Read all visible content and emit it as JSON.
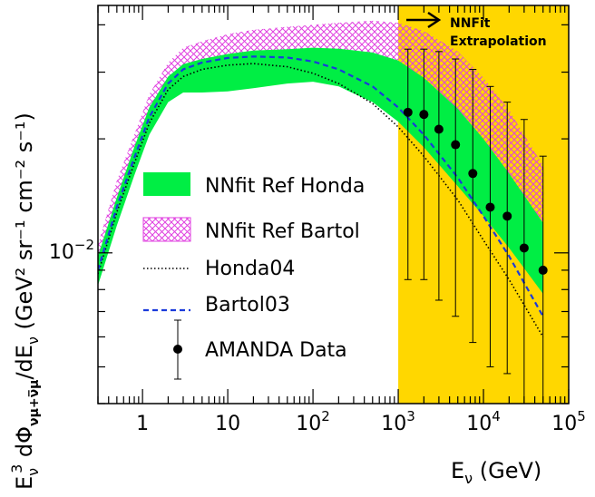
{
  "chart_data": {
    "type": "line",
    "title": "",
    "xlabel": "E_ν (GeV)",
    "ylabel": "E_ν³ dΦ_νμ+ν̅μ / dE_ν (GeV² sr⁻¹ cm⁻² s⁻¹)",
    "x_scale": "log",
    "y_scale": "log",
    "xlim": [
      0.3,
      100000
    ],
    "ylim": [
      0.004,
      0.045
    ],
    "x_ticks": [
      {
        "value": 1,
        "label": "1"
      },
      {
        "value": 10,
        "label": "10"
      },
      {
        "value": 100,
        "label": "10",
        "exp": "2"
      },
      {
        "value": 1000,
        "label": "10",
        "exp": "3"
      },
      {
        "value": 10000,
        "label": "10",
        "exp": "4"
      },
      {
        "value": 100000,
        "label": "10",
        "exp": "5"
      }
    ],
    "y_ticks": [
      {
        "value": 0.01,
        "label": "10",
        "exp": "−2"
      }
    ],
    "x_unit_label": "E",
    "x_unit_sub": "ν",
    "x_unit_rest": " (GeV)",
    "y_title": {
      "e": "E",
      "e_sub": "ν",
      "e_sup": "3",
      "dphi": " dΦ",
      "dphi_sub": "νμ+ν̅μ",
      "de": "/dE",
      "de_sub": "ν",
      "units": " (GeV² sr⁻¹ cm⁻² s⁻¹)"
    },
    "extrapolation_region": {
      "x_from": 1000,
      "x_to": 100000,
      "color": "#ffd700"
    },
    "annotation": {
      "line1": "NNFit",
      "line2": "Extrapolation"
    },
    "grid": false,
    "legend_position": "left-center",
    "series": [
      {
        "name": "NNfit Ref Honda",
        "style": "band",
        "color": "#00ee44",
        "x": [
          0.3,
          0.5,
          0.8,
          1.2,
          2,
          3,
          5,
          10,
          20,
          50,
          100,
          200,
          500,
          1000,
          2000,
          5000,
          10000,
          20000,
          50000
        ],
        "lower": [
          0.0082,
          0.0118,
          0.016,
          0.0205,
          0.025,
          0.0265,
          0.0265,
          0.0267,
          0.0272,
          0.028,
          0.0283,
          0.0275,
          0.025,
          0.0222,
          0.019,
          0.015,
          0.0125,
          0.0103,
          0.0078
        ],
        "upper": [
          0.0098,
          0.014,
          0.019,
          0.0242,
          0.0292,
          0.0315,
          0.0325,
          0.0335,
          0.0342,
          0.0345,
          0.0348,
          0.0346,
          0.0338,
          0.0322,
          0.029,
          0.024,
          0.02,
          0.0162,
          0.012
        ]
      },
      {
        "name": "NNfit Ref Bartol",
        "style": "hatched-band",
        "color": "#e040e0",
        "x": [
          0.3,
          0.5,
          0.8,
          1.2,
          2,
          3,
          5,
          10,
          20,
          50,
          100,
          200,
          500,
          1000,
          2000,
          5000,
          10000,
          20000,
          50000
        ],
        "lower": [
          0.0085,
          0.0125,
          0.0168,
          0.0215,
          0.0265,
          0.029,
          0.0305,
          0.0318,
          0.0325,
          0.033,
          0.033,
          0.0322,
          0.03,
          0.0272,
          0.0238,
          0.019,
          0.0158,
          0.0128,
          0.0095
        ],
        "upper": [
          0.0105,
          0.0155,
          0.0205,
          0.0262,
          0.0318,
          0.0348,
          0.0362,
          0.0378,
          0.0388,
          0.0395,
          0.04,
          0.0405,
          0.041,
          0.0405,
          0.0385,
          0.034,
          0.029,
          0.0238,
          0.017
        ]
      },
      {
        "name": "Honda04",
        "style": "dotted",
        "color": "#000000",
        "x": [
          0.3,
          0.5,
          0.8,
          1.2,
          2,
          3,
          5,
          10,
          20,
          50,
          100,
          200,
          500,
          1000,
          2000,
          5000,
          10000,
          20000,
          50000
        ],
        "y": [
          0.0088,
          0.0128,
          0.0172,
          0.022,
          0.027,
          0.0292,
          0.0305,
          0.0313,
          0.0316,
          0.031,
          0.0298,
          0.028,
          0.0248,
          0.0215,
          0.018,
          0.0138,
          0.0108,
          0.0085,
          0.006
        ]
      },
      {
        "name": "Bartol03",
        "style": "dashed",
        "color": "#1a3adb",
        "x": [
          0.3,
          0.5,
          0.8,
          1.2,
          2,
          3,
          5,
          10,
          20,
          50,
          100,
          200,
          500,
          1000,
          2000,
          5000,
          10000,
          20000,
          50000
        ],
        "y": [
          0.009,
          0.0132,
          0.0178,
          0.0228,
          0.028,
          0.0305,
          0.0318,
          0.0327,
          0.033,
          0.0328,
          0.032,
          0.0305,
          0.0275,
          0.0242,
          0.0205,
          0.0158,
          0.0125,
          0.0098,
          0.0068
        ]
      },
      {
        "name": "AMANDA Data",
        "style": "points",
        "color": "#000000",
        "x": [
          1300,
          2000,
          3000,
          4700,
          7500,
          12000,
          19000,
          30000,
          50000
        ],
        "y": [
          0.0235,
          0.0232,
          0.0212,
          0.0193,
          0.0162,
          0.0132,
          0.0125,
          0.0103,
          0.009
        ],
        "err_low": [
          0.0085,
          0.0085,
          0.0075,
          0.0068,
          0.0058,
          0.005,
          0.0048,
          0.004,
          0.004
        ],
        "err_high": [
          0.0345,
          0.0345,
          0.034,
          0.0325,
          0.0305,
          0.0275,
          0.025,
          0.0225,
          0.018
        ]
      }
    ]
  }
}
